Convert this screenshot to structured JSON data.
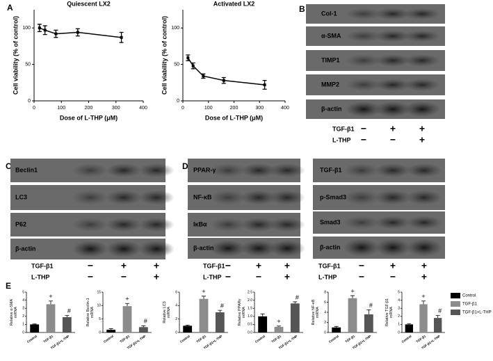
{
  "panel_labels": [
    "A",
    "B",
    "C",
    "D",
    "E"
  ],
  "chart_data": [
    {
      "type": "line",
      "title": "Quiescent LX2",
      "xlabel": "Dose of L-THP (μM)",
      "ylabel": "Cell viability (% of control)",
      "x": [
        20,
        40,
        80,
        160,
        320
      ],
      "values": [
        100,
        97,
        92,
        94,
        87
      ],
      "errors": [
        5,
        6,
        5,
        5,
        7
      ],
      "color": "#000000",
      "xlim": [
        0,
        400
      ],
      "xticks": [
        0,
        100,
        200,
        300,
        400
      ],
      "ylim": [
        0,
        125
      ],
      "yticks": [
        0,
        50,
        100
      ]
    },
    {
      "type": "line",
      "title": "Activated LX2",
      "xlabel": "Dose of L-THP (μM)",
      "ylabel": "Cell viability (% of control)",
      "x": [
        20,
        40,
        80,
        160,
        320
      ],
      "values": [
        59,
        48,
        34,
        28,
        22
      ],
      "errors": [
        4,
        4,
        3,
        4,
        6
      ],
      "color": "#000000",
      "xlim": [
        0,
        400
      ],
      "xticks": [
        0,
        100,
        200,
        300,
        400
      ],
      "ylim": [
        0,
        125
      ],
      "yticks": [
        0,
        50,
        100
      ]
    },
    {
      "type": "bar",
      "ylabel": [
        "Relative α-SMA",
        "mRNA"
      ],
      "categories": [
        "Control",
        "TGF-β1",
        "TGF-β1+L-THP"
      ],
      "values": [
        1,
        3.5,
        1.9
      ],
      "errors": [
        0.05,
        0.4,
        0.2
      ],
      "markers": [
        null,
        "+",
        "#"
      ],
      "ylim": [
        0,
        5
      ],
      "yticks": [
        0,
        1,
        2,
        3,
        4,
        5
      ]
    },
    {
      "type": "bar",
      "ylabel": [
        "Relative Beclin-1",
        "mRNA"
      ],
      "categories": [
        "Control",
        "TGF-β1",
        "TGF-β1+L-THP"
      ],
      "values": [
        1,
        9.8,
        2
      ],
      "errors": [
        0.4,
        1,
        0.5
      ],
      "markers": [
        null,
        "+",
        "#"
      ],
      "ylim": [
        0,
        15
      ],
      "yticks": [
        0,
        5,
        10,
        15
      ]
    },
    {
      "type": "bar",
      "ylabel": [
        "Relative LC3",
        "mRNA"
      ],
      "categories": [
        "Control",
        "TGF-β1",
        "TGF-β1+L-THP"
      ],
      "values": [
        1,
        5,
        3
      ],
      "errors": [
        0.1,
        0.4,
        0.3
      ],
      "markers": [
        null,
        "+",
        "#"
      ],
      "ylim": [
        0,
        6
      ],
      "yticks": [
        0,
        2,
        4,
        6
      ]
    },
    {
      "type": "bar",
      "ylabel": [
        "Relative PPARγ",
        "mRNA"
      ],
      "categories": [
        "Control",
        "TGF-β1",
        "TGF-β1+L-THP"
      ],
      "values": [
        1,
        0.35,
        1.8
      ],
      "errors": [
        0.15,
        0.05,
        0.1
      ],
      "markers": [
        null,
        "+",
        "#"
      ],
      "ylim": [
        0,
        2.5
      ],
      "yticks": [
        {
          "value": 0,
          "label": "0.0"
        },
        0.5,
        {
          "value": 1,
          "label": "1.0"
        },
        1.5,
        {
          "value": 2,
          "label": "2.0"
        },
        2.5
      ]
    },
    {
      "type": "bar",
      "ylabel": [
        "Relative NF-κB",
        "mRNA"
      ],
      "categories": [
        "Control",
        "TGF-β1",
        "TGF-β1+L-THP"
      ],
      "values": [
        1,
        6.8,
        3.6
      ],
      "errors": [
        0.2,
        0.5,
        0.9
      ],
      "markers": [
        null,
        "+",
        "#"
      ],
      "ylim": [
        0,
        8
      ],
      "yticks": [
        0,
        2,
        4,
        6,
        8
      ]
    },
    {
      "type": "bar",
      "ylabel": [
        "Relative TGF-β1",
        "mRNA"
      ],
      "categories": [
        "Control",
        "TGF-β1",
        "TGF-β1+L-THP"
      ],
      "values": [
        1,
        3.5,
        1.8
      ],
      "errors": [
        0.1,
        0.4,
        0.3
      ],
      "markers": [
        null,
        "+",
        "#"
      ],
      "ylim": [
        0,
        5
      ],
      "yticks": [
        0,
        1,
        2,
        3,
        4,
        5
      ]
    }
  ],
  "legend": {
    "names": [
      "Control",
      "TGF-β1",
      "TGF-β1+L-THP"
    ],
    "colors": [
      "#000000",
      "#8c8c8c",
      "#555555"
    ]
  },
  "blots": [
    {
      "rows": [
        "Col-1",
        "α-SMA",
        "TIMP1",
        "MMP2",
        "β-actin"
      ],
      "treatments": [
        {
          "name": "TGF-β1",
          "signs": [
            "−",
            "+",
            "+"
          ]
        },
        {
          "name": "L-THP",
          "signs": [
            "−",
            "−",
            "+"
          ]
        }
      ]
    },
    {
      "rows": [
        "Beclin1",
        "LC3",
        "P62",
        "β-actin"
      ],
      "treatments": [
        {
          "name": "TGF-β1",
          "signs": [
            "−",
            "+",
            "+"
          ]
        },
        {
          "name": "L-THP",
          "signs": [
            "−",
            "−",
            "+"
          ]
        }
      ]
    },
    {
      "rows": [
        "PPAR-γ",
        "NF-κB",
        "IκBα",
        "β-actin"
      ],
      "treatments": [
        {
          "name": "TGF-β1",
          "signs": [
            "−",
            "+",
            "+"
          ]
        },
        {
          "name": "L-THP",
          "signs": [
            "−",
            "−",
            "+"
          ]
        }
      ]
    },
    {
      "rows": [
        "TGF-β1",
        "p-Smad3",
        "Smad3",
        "β-actin"
      ],
      "treatments": [
        {
          "name": "TGF-β1",
          "signs": [
            "−",
            "+",
            "+"
          ]
        },
        {
          "name": "L-THP",
          "signs": [
            "−",
            "−",
            "+"
          ]
        }
      ]
    }
  ]
}
